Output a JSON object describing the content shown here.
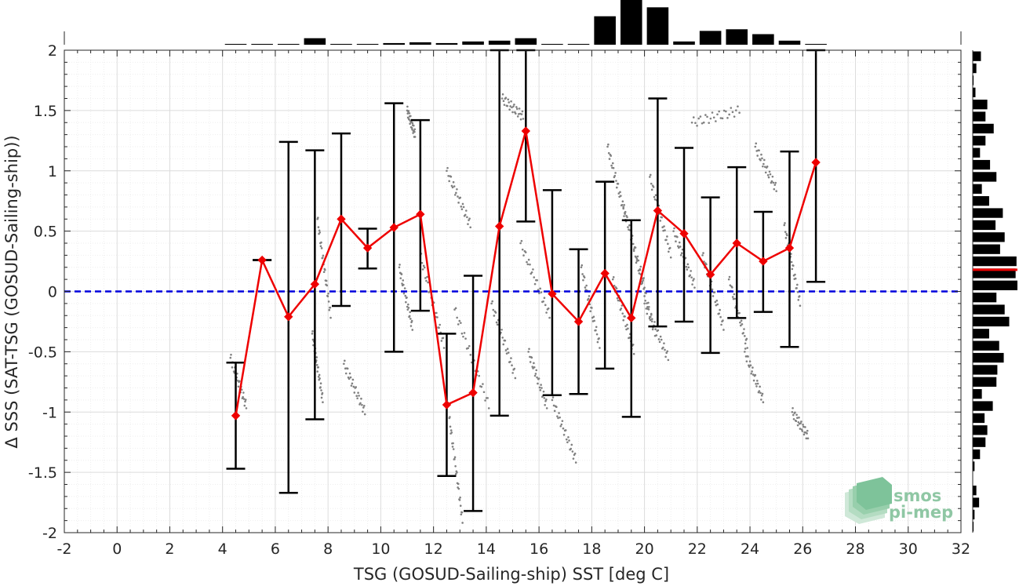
{
  "chart_data": {
    "type": "line",
    "title": "",
    "xlabel": "TSG (GOSUD-Sailing-ship) SST [deg C]",
    "ylabel": "Δ SSS (SAT-TSG (GOSUD-Sailing-ship))",
    "xlim": [
      -2,
      32
    ],
    "ylim": [
      -2,
      2
    ],
    "x_ticks": [
      "-2",
      "0",
      "2",
      "4",
      "6",
      "8",
      "10",
      "12",
      "14",
      "16",
      "18",
      "20",
      "22",
      "24",
      "26",
      "28",
      "30",
      "32"
    ],
    "y_ticks": [
      "2",
      "1.5",
      "1",
      "0.5",
      "0",
      "-0.5",
      "-1",
      "-1.5",
      "-2"
    ],
    "grid": true,
    "reference_line": {
      "y": 0,
      "style": "dashed",
      "color": "#0000dd"
    },
    "series": [
      {
        "type": "line-errorbar",
        "color": "#ee0000",
        "x": [
          4.5,
          5.5,
          6.5,
          7.5,
          8.5,
          9.5,
          10.5,
          11.5,
          12.5,
          13.5,
          14.5,
          15.5,
          16.5,
          17.5,
          18.5,
          19.5,
          20.5,
          21.5,
          22.5,
          23.5,
          24.5,
          25.5,
          26.5
        ],
        "y": [
          -1.03,
          0.26,
          -0.21,
          0.06,
          0.6,
          0.36,
          0.53,
          0.64,
          -0.94,
          -0.84,
          0.54,
          1.33,
          -0.02,
          -0.25,
          0.15,
          -0.22,
          0.67,
          0.48,
          0.14,
          0.4,
          0.25,
          0.36,
          1.07
        ],
        "err_low": [
          -1.47,
          0.26,
          -1.67,
          -1.06,
          -0.12,
          0.19,
          -0.5,
          -0.16,
          -1.53,
          -1.82,
          -1.03,
          0.58,
          -0.86,
          -0.85,
          -0.64,
          -1.04,
          -0.29,
          -0.25,
          -0.51,
          -0.22,
          -0.17,
          -0.46,
          0.08
        ],
        "err_high": [
          -0.59,
          0.26,
          1.24,
          1.17,
          1.31,
          0.52,
          1.56,
          1.42,
          -0.35,
          0.13,
          2.0,
          2.0,
          0.84,
          0.35,
          0.91,
          0.59,
          1.6,
          1.19,
          0.78,
          1.03,
          0.66,
          1.16,
          2.0
        ]
      },
      {
        "type": "scatter",
        "color": "#808080",
        "tracks": [
          {
            "x0": 4.3,
            "y0": -0.55,
            "x1": 4.9,
            "y1": -0.95
          },
          {
            "x0": 7.4,
            "y0": -0.35,
            "x1": 7.8,
            "y1": -0.9
          },
          {
            "x0": 7.6,
            "y0": 0.6,
            "x1": 8.1,
            "y1": -0.2
          },
          {
            "x0": 8.6,
            "y0": -0.6,
            "x1": 9.4,
            "y1": -1.0
          },
          {
            "x0": 10.7,
            "y0": 0.2,
            "x1": 11.2,
            "y1": -0.3
          },
          {
            "x0": 11.5,
            "y0": 0.3,
            "x1": 12.4,
            "y1": -0.45
          },
          {
            "x0": 11.0,
            "y0": 1.5,
            "x1": 11.3,
            "y1": 1.3
          },
          {
            "x0": 12.5,
            "y0": 1.0,
            "x1": 13.4,
            "y1": 0.55
          },
          {
            "x0": 12.8,
            "y0": -0.15,
            "x1": 14.1,
            "y1": -0.95
          },
          {
            "x0": 12.6,
            "y0": -1.05,
            "x1": 13.1,
            "y1": -1.9
          },
          {
            "x0": 14.2,
            "y0": -0.1,
            "x1": 15.1,
            "y1": -0.7
          },
          {
            "x0": 14.6,
            "y0": 1.6,
            "x1": 15.4,
            "y1": 1.45
          },
          {
            "x0": 15.3,
            "y0": 0.4,
            "x1": 16.4,
            "y1": -0.2
          },
          {
            "x0": 15.6,
            "y0": -0.5,
            "x1": 16.3,
            "y1": -0.95
          },
          {
            "x0": 16.5,
            "y0": -0.9,
            "x1": 17.4,
            "y1": -1.4
          },
          {
            "x0": 17.6,
            "y0": 0.2,
            "x1": 18.3,
            "y1": -0.45
          },
          {
            "x0": 18.6,
            "y0": 1.2,
            "x1": 19.3,
            "y1": 0.6
          },
          {
            "x0": 18.8,
            "y0": 0.1,
            "x1": 19.6,
            "y1": -0.5
          },
          {
            "x0": 19.2,
            "y0": 0.7,
            "x1": 20.0,
            "y1": 0.05
          },
          {
            "x0": 19.6,
            "y0": 0.35,
            "x1": 20.4,
            "y1": -0.35
          },
          {
            "x0": 20.2,
            "y0": 0.95,
            "x1": 21.0,
            "y1": 0.3
          },
          {
            "x0": 20.0,
            "y0": -0.1,
            "x1": 20.9,
            "y1": -0.55
          },
          {
            "x0": 21.1,
            "y0": 0.5,
            "x1": 21.9,
            "y1": 0.05
          },
          {
            "x0": 21.8,
            "y0": 1.4,
            "x1": 23.6,
            "y1": 1.5
          },
          {
            "x0": 22.2,
            "y0": 0.3,
            "x1": 23.0,
            "y1": -0.3
          },
          {
            "x0": 23.2,
            "y0": 0.1,
            "x1": 23.9,
            "y1": -0.45
          },
          {
            "x0": 23.8,
            "y0": -0.5,
            "x1": 24.5,
            "y1": -0.9
          },
          {
            "x0": 24.2,
            "y0": 1.2,
            "x1": 25.0,
            "y1": 0.85
          },
          {
            "x0": 25.3,
            "y0": 0.55,
            "x1": 25.9,
            "y1": -0.1
          },
          {
            "x0": 25.6,
            "y0": -1.0,
            "x1": 26.2,
            "y1": -1.2
          }
        ]
      }
    ],
    "histogram_x": {
      "x": [
        -1.5,
        -0.5,
        0.5,
        1.5,
        2.5,
        3.5,
        4.5,
        5.5,
        6.5,
        7.5,
        8.5,
        9.5,
        10.5,
        11.5,
        12.5,
        13.5,
        14.5,
        15.5,
        16.5,
        17.5,
        18.5,
        19.5,
        20.5,
        21.5,
        22.5,
        23.5,
        24.5,
        25.5,
        26.5,
        27.5,
        28.5,
        29.5,
        30.5,
        31.5
      ],
      "counts": [
        0,
        0,
        0,
        0,
        0,
        0,
        1,
        1,
        1,
        8,
        1,
        1,
        2,
        3,
        2,
        4,
        5,
        8,
        1,
        1,
        35,
        55,
        46,
        4,
        17,
        19,
        13,
        5,
        1,
        0,
        0,
        0,
        0,
        0
      ]
    },
    "histogram_y": {
      "y": [
        1.95,
        1.85,
        1.75,
        1.65,
        1.55,
        1.45,
        1.35,
        1.25,
        1.15,
        1.05,
        0.95,
        0.85,
        0.75,
        0.65,
        0.55,
        0.45,
        0.35,
        0.25,
        0.15,
        0.05,
        -0.05,
        -0.15,
        -0.25,
        -0.35,
        -0.45,
        -0.55,
        -0.65,
        -0.75,
        -0.85,
        -0.95,
        -1.05,
        -1.15,
        -1.25,
        -1.35,
        -1.45,
        -1.55,
        -1.65,
        -1.75,
        -1.85,
        -1.95
      ],
      "counts": [
        9,
        4,
        1,
        3,
        16,
        14,
        23,
        14,
        8,
        19,
        26,
        10,
        18,
        33,
        25,
        35,
        30,
        48,
        47,
        49,
        26,
        35,
        40,
        18,
        29,
        34,
        27,
        26,
        10,
        22,
        13,
        16,
        14,
        8,
        2,
        0,
        4,
        7,
        2,
        1
      ],
      "median_line": {
        "y": 0.18,
        "color": "#ee0000"
      }
    }
  },
  "logo": {
    "line1": "smos",
    "line2": "pi-mep"
  }
}
